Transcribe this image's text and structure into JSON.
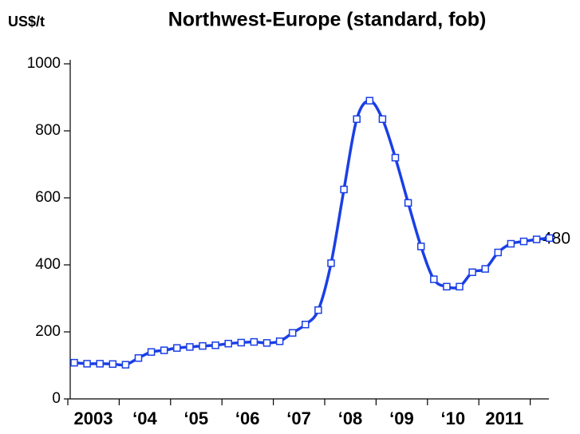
{
  "chart_data": {
    "type": "line",
    "title": "Northwest-Europe (standard, fob)",
    "y_label": "US$/t",
    "annotation": "480",
    "categories": [
      "2003",
      null,
      null,
      null,
      "‘04",
      null,
      null,
      null,
      "‘05",
      null,
      null,
      null,
      "‘06",
      null,
      null,
      null,
      "‘07",
      null,
      null,
      null,
      "‘08",
      null,
      null,
      null,
      "‘09",
      null,
      null,
      null,
      "‘10",
      null,
      null,
      null,
      "2011",
      null,
      null,
      null,
      null,
      null
    ],
    "series": [
      {
        "name": "Northwest-Europe",
        "color": "#1a3fe6",
        "values": [
          108,
          105,
          105,
          104,
          102,
          122,
          140,
          145,
          152,
          155,
          158,
          160,
          165,
          168,
          170,
          167,
          172,
          197,
          222,
          265,
          405,
          625,
          835,
          890,
          835,
          720,
          585,
          455,
          357,
          335,
          335,
          378,
          388,
          437,
          463,
          470,
          476,
          480
        ]
      }
    ],
    "ylim": [
      0,
      1000
    ],
    "yticks": [
      0,
      200,
      400,
      600,
      800,
      1000
    ],
    "grid": false
  }
}
